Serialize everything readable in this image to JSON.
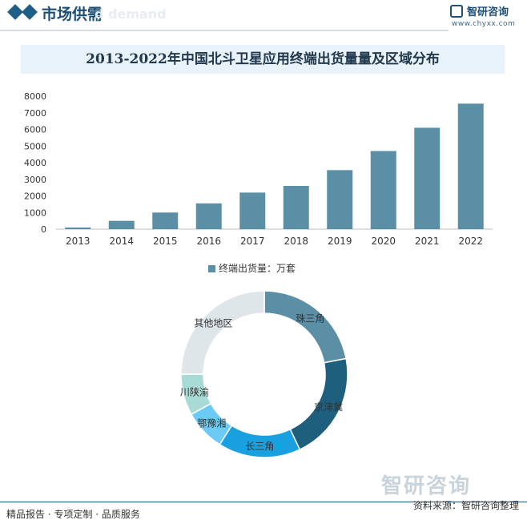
{
  "header": {
    "section_title": "市场供需",
    "ghost_text": "d demand",
    "logo_name": "智研咨询",
    "logo_url": "www.chyxx.com"
  },
  "chart_data": [
    {
      "type": "bar",
      "title": "2013-2022年中国北斗卫星应用终端出货量量及区域分布",
      "categories": [
        "2013",
        "2014",
        "2015",
        "2016",
        "2017",
        "2018",
        "2019",
        "2020",
        "2021",
        "2022"
      ],
      "series": [
        {
          "name": "终端出货量：万套",
          "values": [
            100,
            500,
            1000,
            1550,
            2200,
            2600,
            3550,
            4700,
            6100,
            7550
          ]
        }
      ],
      "ylim": [
        0,
        8000
      ],
      "yticks": [
        0,
        1000,
        2000,
        3000,
        4000,
        5000,
        6000,
        7000,
        8000
      ],
      "legend_position": "bottom",
      "color": "#5b8fa6"
    },
    {
      "type": "pie",
      "donut": true,
      "labels": [
        "珠三角",
        "京津冀",
        "长三角",
        "鄂豫湘",
        "川陕渝",
        "其他地区"
      ],
      "values": [
        22,
        21,
        16,
        8,
        8,
        25
      ],
      "colors": [
        "#5b8fa6",
        "#1f5f7e",
        "#19a0e0",
        "#6ccbf5",
        "#a9dbd6",
        "#dfe6ea"
      ]
    }
  ],
  "footer": {
    "left": "精品报告 · 专项定制 · 品质服务",
    "right": "资料来源：智研咨询整理",
    "watermark": "智研咨询"
  }
}
